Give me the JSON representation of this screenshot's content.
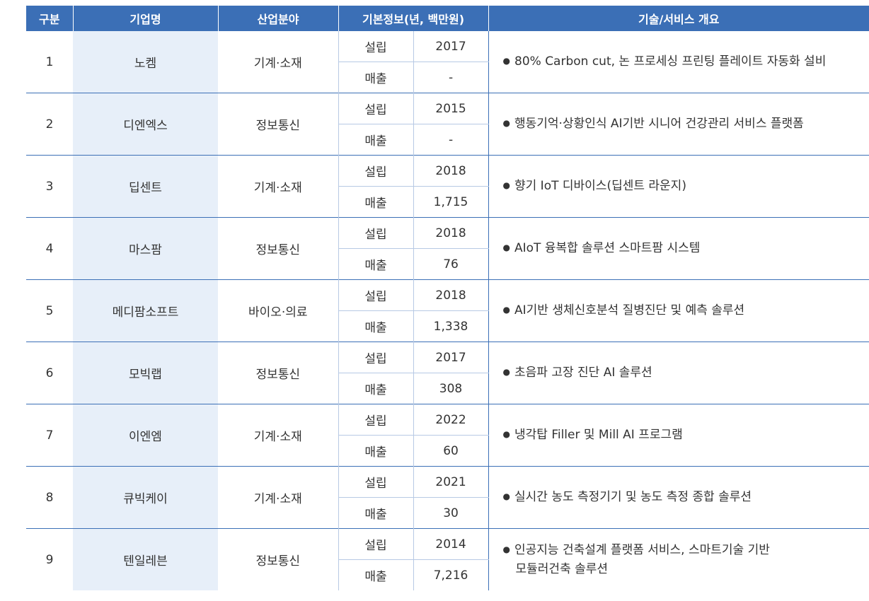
{
  "headers": {
    "no": "구분",
    "company": "기업명",
    "field": "산업분야",
    "basic": "기본정보(년, 백만원)",
    "desc": "기술/서비스 개요"
  },
  "labels": {
    "founded": "설립",
    "sales": "매출",
    "bullet": "●"
  },
  "rows": [
    {
      "no": "1",
      "company": "노켐",
      "field": "기계·소재",
      "founded": "2017",
      "sales": "-",
      "desc": [
        "80% Carbon cut, 논 프로세싱 프린팅 플레이트 자동화 설비"
      ]
    },
    {
      "no": "2",
      "company": "디엔엑스",
      "field": "정보통신",
      "founded": "2015",
      "sales": "-",
      "desc": [
        "행동기억·상황인식 AI기반 시니어 건강관리 서비스 플랫폼"
      ]
    },
    {
      "no": "3",
      "company": "딥센트",
      "field": "기계·소재",
      "founded": "2018",
      "sales": "1,715",
      "desc": [
        "향기 IoT 디바이스(딥센트 라운지)"
      ]
    },
    {
      "no": "4",
      "company": "마스팜",
      "field": "정보통신",
      "founded": "2018",
      "sales": "76",
      "desc": [
        "AIoT 융복합 솔루션 스마트팜 시스템"
      ]
    },
    {
      "no": "5",
      "company": "메디팜소프트",
      "field": "바이오·의료",
      "founded": "2018",
      "sales": "1,338",
      "desc": [
        "AI기반 생체신호분석 질병진단 및 예측 솔루션"
      ]
    },
    {
      "no": "6",
      "company": "모빅랩",
      "field": "정보통신",
      "founded": "2017",
      "sales": "308",
      "desc": [
        "초음파 고장 진단 AI 솔루션"
      ]
    },
    {
      "no": "7",
      "company": "이엔엠",
      "field": "기계·소재",
      "founded": "2022",
      "sales": "60",
      "desc": [
        "냉각탑 Filler 및 Mill AI 프로그램"
      ]
    },
    {
      "no": "8",
      "company": "큐빅케이",
      "field": "기계·소재",
      "founded": "2021",
      "sales": "30",
      "desc": [
        "실시간 농도 측정기기 및 농도 측정 종합 솔루션"
      ]
    },
    {
      "no": "9",
      "company": "텐일레븐",
      "field": "정보통신",
      "founded": "2014",
      "sales": "7,216",
      "desc": [
        "인공지능 건축설계 플랫폼 서비스, 스마트기술 기반",
        "모듈러건축 솔루션"
      ]
    }
  ]
}
